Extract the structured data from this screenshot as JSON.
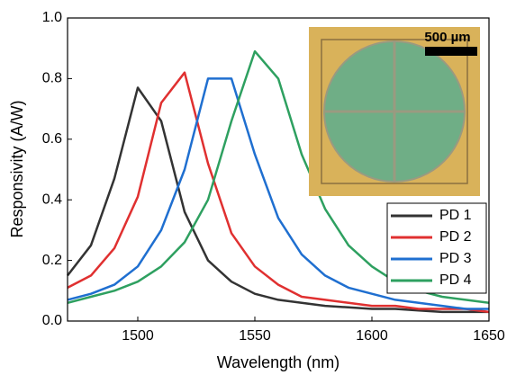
{
  "chart_data": {
    "type": "line",
    "x_label": "Wavelength (nm)",
    "y_label": "Responsivity (A/W)",
    "x": [
      1470,
      1480,
      1490,
      1500,
      1510,
      1520,
      1530,
      1540,
      1550,
      1560,
      1570,
      1580,
      1590,
      1600,
      1610,
      1620,
      1630,
      1640,
      1650
    ],
    "series": [
      {
        "name": "PD 1",
        "color": "#333333",
        "values": [
          0.15,
          0.25,
          0.47,
          0.77,
          0.66,
          0.36,
          0.2,
          0.13,
          0.09,
          0.07,
          0.06,
          0.05,
          0.045,
          0.04,
          0.04,
          0.035,
          0.03,
          0.03,
          0.03
        ]
      },
      {
        "name": "PD 2",
        "color": "#e03030",
        "values": [
          0.11,
          0.15,
          0.24,
          0.41,
          0.72,
          0.82,
          0.52,
          0.29,
          0.18,
          0.12,
          0.08,
          0.07,
          0.06,
          0.05,
          0.05,
          0.04,
          0.04,
          0.04,
          0.03
        ]
      },
      {
        "name": "PD 3",
        "color": "#1f6fd0",
        "values": [
          0.07,
          0.09,
          0.12,
          0.18,
          0.3,
          0.5,
          0.8,
          0.8,
          0.55,
          0.34,
          0.22,
          0.15,
          0.11,
          0.09,
          0.07,
          0.06,
          0.05,
          0.04,
          0.04
        ]
      },
      {
        "name": "PD 4",
        "color": "#2ea060",
        "values": [
          0.06,
          0.08,
          0.1,
          0.13,
          0.18,
          0.26,
          0.4,
          0.66,
          0.89,
          0.8,
          0.55,
          0.37,
          0.25,
          0.18,
          0.13,
          0.1,
          0.08,
          0.07,
          0.06
        ]
      }
    ],
    "xlim": [
      1470,
      1650
    ],
    "xticks": [
      1500,
      1550,
      1600,
      1650
    ],
    "ylim": [
      0,
      1
    ],
    "yticks": [
      {
        "value": 0,
        "label": "0.0"
      },
      {
        "value": 0.2,
        "label": "0.2"
      },
      {
        "value": 0.4,
        "label": "0.4"
      },
      {
        "value": 0.6,
        "label": "0.6"
      },
      {
        "value": 0.8,
        "label": "0.8"
      },
      {
        "value": 1,
        "label": "1.0"
      }
    ],
    "legend": "lower right",
    "annotations": [
      "500 µm"
    ]
  }
}
